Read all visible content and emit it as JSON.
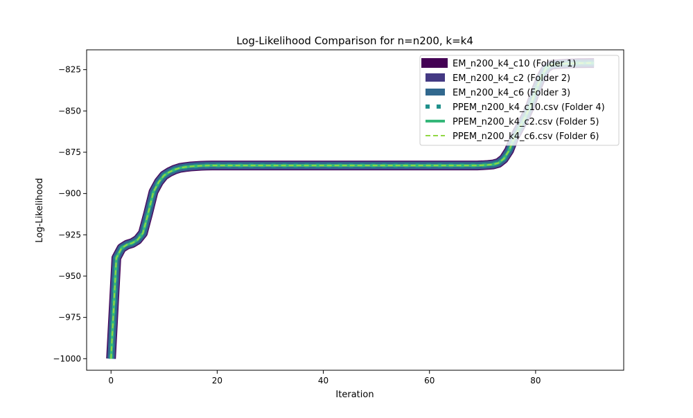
{
  "chart_data": {
    "type": "line",
    "title": "Log-Likelihood Comparison for n=n200, k=k4",
    "xlabel": "Iteration",
    "ylabel": "Log-Likelihood",
    "xlim": [
      -4.6,
      96.6
    ],
    "ylim": [
      -1007,
      -813
    ],
    "xticks": [
      0,
      20,
      40,
      60,
      80
    ],
    "yticks": [
      -1000,
      -975,
      -950,
      -925,
      -900,
      -875,
      -850,
      -825
    ],
    "xtick_labels": [
      "0",
      "20",
      "40",
      "60",
      "80"
    ],
    "ytick_labels": [
      "−1000",
      "−975",
      "−950",
      "−925",
      "−900",
      "−875",
      "−850",
      "−825"
    ],
    "grid": false,
    "legend_position": "top-right",
    "x": [
      0,
      1,
      2,
      3,
      4,
      5,
      6,
      7,
      8,
      9,
      10,
      11,
      12,
      13,
      14,
      15,
      16,
      17,
      18,
      19,
      20,
      21,
      22,
      23,
      24,
      25,
      26,
      27,
      28,
      29,
      30,
      31,
      32,
      33,
      34,
      35,
      36,
      37,
      38,
      39,
      40,
      41,
      42,
      43,
      44,
      45,
      46,
      47,
      48,
      49,
      50,
      51,
      52,
      53,
      54,
      55,
      56,
      57,
      58,
      59,
      60,
      61,
      62,
      63,
      64,
      65,
      66,
      67,
      68,
      69,
      70,
      71,
      72,
      73,
      74,
      75,
      76,
      77,
      78,
      79,
      80,
      81,
      82,
      83,
      84,
      85,
      86,
      87,
      88,
      89,
      90,
      91
    ],
    "y": [
      -1000,
      -939,
      -933,
      -931,
      -930,
      -928,
      -924,
      -912,
      -899,
      -893,
      -889,
      -887,
      -885.5,
      -884.5,
      -884,
      -883.6,
      -883.4,
      -883.2,
      -883.1,
      -883,
      -883,
      -883,
      -883,
      -883,
      -883,
      -883,
      -883,
      -883,
      -883,
      -883,
      -883,
      -883,
      -883,
      -883,
      -883,
      -883,
      -883,
      -883,
      -883,
      -883,
      -883,
      -883,
      -883,
      -883,
      -883,
      -883,
      -883,
      -883,
      -883,
      -883,
      -883,
      -883,
      -883,
      -883,
      -883,
      -883,
      -883,
      -883,
      -883,
      -883,
      -883,
      -883,
      -883,
      -883,
      -883,
      -883,
      -883,
      -883,
      -883,
      -883,
      -882.9,
      -882.7,
      -882.4,
      -881.5,
      -879,
      -874,
      -866,
      -860,
      -854,
      -847,
      -838,
      -830,
      -824,
      -822,
      -821.7,
      -821.5,
      -821.3,
      -821.2,
      -821.1,
      -821.1,
      -821,
      -821
    ],
    "series": [
      {
        "name": "EM_n200_k4_c10 (Folder 1)",
        "color": "#440154",
        "style": "solid",
        "width": 14,
        "opacity": 1.0
      },
      {
        "name": "EM_n200_k4_c2 (Folder 2)",
        "color": "#443983",
        "style": "solid",
        "width": 12,
        "opacity": 1.0
      },
      {
        "name": "EM_n200_k4_c6 (Folder 3)",
        "color": "#31688e",
        "style": "solid",
        "width": 10,
        "opacity": 1.0
      },
      {
        "name": "PPEM_n200_k4_c10.csv (Folder 4)",
        "color": "#21918c",
        "style": "dotted",
        "width": 6,
        "opacity": 1.0
      },
      {
        "name": "PPEM_n200_k4_c2.csv (Folder 5)",
        "color": "#35b779",
        "style": "solid",
        "width": 4,
        "opacity": 1.0
      },
      {
        "name": "PPEM_n200_k4_c6.csv (Folder 6)",
        "color": "#90d743",
        "style": "dashed",
        "width": 2,
        "opacity": 1.0
      }
    ]
  }
}
